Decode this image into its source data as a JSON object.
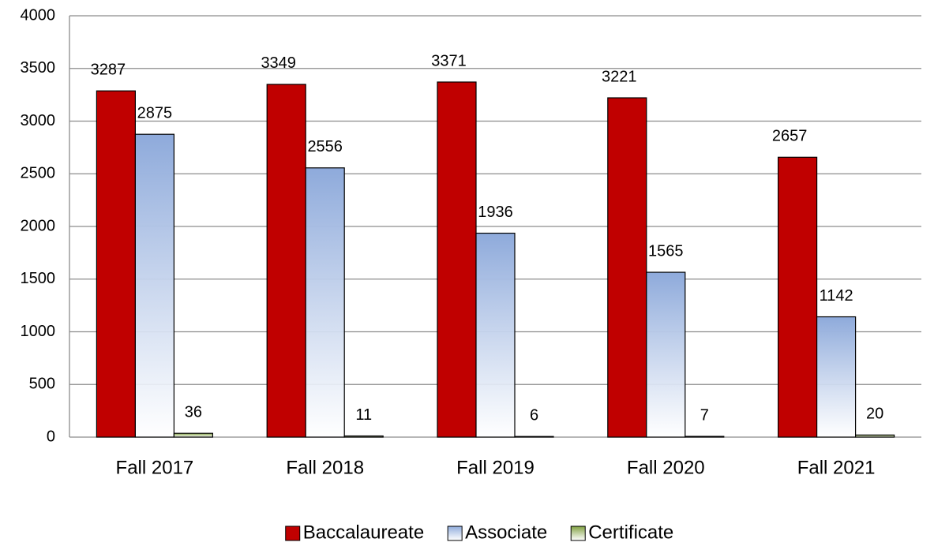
{
  "chart_data": {
    "type": "bar",
    "categories": [
      "Fall 2017",
      "Fall 2018",
      "Fall 2019",
      "Fall 2020",
      "Fall 2021"
    ],
    "series": [
      {
        "name": "Baccalaureate",
        "color": "#c00000",
        "values": [
          3287,
          3349,
          3371,
          3221,
          2657
        ]
      },
      {
        "name": "Associate",
        "color": "#8eaadb",
        "gradient": true,
        "values": [
          2875,
          2556,
          1936,
          1565,
          1142
        ]
      },
      {
        "name": "Certificate",
        "color": "#7f9f3f",
        "gradient": true,
        "values": [
          36,
          11,
          6,
          7,
          20
        ]
      }
    ],
    "ylim": [
      0,
      4000
    ],
    "yticks": [
      0,
      500,
      1000,
      1500,
      2000,
      2500,
      3000,
      3500,
      4000
    ],
    "grid": true,
    "legend": "bottom"
  }
}
